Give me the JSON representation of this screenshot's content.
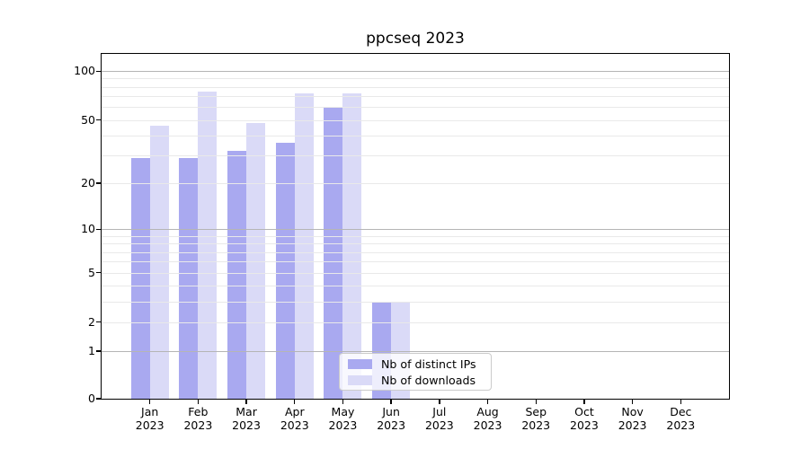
{
  "title": "ppcseq 2023",
  "legend": {
    "items": [
      {
        "label": "Nb of distinct IPs",
        "color": "#a9a9f0"
      },
      {
        "label": "Nb of downloads",
        "color": "#dadaf7"
      }
    ]
  },
  "axis": {
    "y_tick_labels": [
      "100",
      "50",
      "20",
      "10",
      "5",
      "2",
      "1",
      "0"
    ],
    "year_label": "2023"
  },
  "chart_data": {
    "type": "bar",
    "title": "ppcseq 2023",
    "categories": [
      "Jan",
      "Feb",
      "Mar",
      "Apr",
      "May",
      "Jun",
      "Jul",
      "Aug",
      "Sep",
      "Oct",
      "Nov",
      "Dec"
    ],
    "year": "2023",
    "series": [
      {
        "name": "Nb of distinct IPs",
        "color": "#a9a9f0",
        "values": [
          29,
          29,
          32,
          36,
          60,
          3,
          0,
          0,
          0,
          0,
          0,
          0
        ]
      },
      {
        "name": "Nb of downloads",
        "color": "#dadaf7",
        "values": [
          46,
          75,
          48,
          73,
          73,
          3,
          0,
          0,
          0,
          0,
          0,
          0
        ]
      }
    ],
    "xlabel": "",
    "ylabel": "",
    "y_scale": "log1p",
    "ylim": [
      0,
      127
    ],
    "y_ticks": [
      100,
      50,
      20,
      10,
      5,
      2,
      1,
      0
    ],
    "y_major_grid": [
      100,
      10,
      1
    ],
    "y_minor_grid": [
      90,
      80,
      70,
      60,
      50,
      40,
      30,
      20,
      9,
      8,
      7,
      6,
      5,
      4,
      3,
      2
    ],
    "grid": true,
    "legend_position": "lower center",
    "colors": {
      "major_grid": "#b5b5b5",
      "minor_grid": "#e9e9e9",
      "axis": "#000000"
    }
  }
}
